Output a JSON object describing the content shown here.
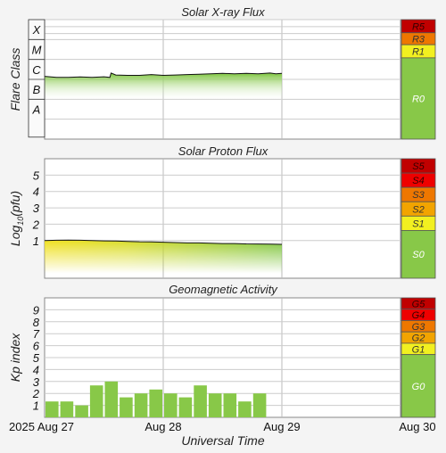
{
  "chart_data": [
    {
      "type": "area",
      "title": "Solar X-ray Flux",
      "ylabel": "Flare Class",
      "class_labels": [
        "X",
        "M",
        "C",
        "B",
        "A"
      ],
      "ylim": [
        -9,
        -3
      ],
      "x_start_day": 27,
      "x_end_day": 29,
      "series": [
        {
          "x": [
            27.0,
            27.1,
            27.2,
            27.3,
            27.4,
            27.5,
            27.55,
            27.56,
            27.6,
            27.7,
            27.8,
            27.9,
            28.0,
            28.1,
            28.2,
            28.3,
            28.4,
            28.5,
            28.6,
            28.7,
            28.8,
            28.9,
            28.95,
            29.0
          ],
          "values": [
            -5.85,
            -5.9,
            -5.9,
            -5.88,
            -5.9,
            -5.87,
            -5.9,
            -5.68,
            -5.78,
            -5.8,
            -5.8,
            -5.76,
            -5.8,
            -5.78,
            -5.76,
            -5.74,
            -5.72,
            -5.7,
            -5.72,
            -5.7,
            -5.72,
            -5.68,
            -5.72,
            -5.7
          ]
        }
      ],
      "scale": [
        {
          "label": "R5",
          "color": "#c00000"
        },
        {
          "label": "R3",
          "color": "#ee7700"
        },
        {
          "label": "R1",
          "color": "#f2f020"
        },
        {
          "label": "R0",
          "color": "#88c848"
        }
      ]
    },
    {
      "type": "area",
      "title": "Solar Proton Flux",
      "ylabel": "Log10(pfu)",
      "ytick_labels": [
        "1",
        "2",
        "3",
        "4",
        "5"
      ],
      "ylim": [
        -1.3,
        6
      ],
      "x_start_day": 27,
      "x_end_day": 29,
      "series": [
        {
          "x": [
            27.0,
            27.1,
            27.2,
            27.3,
            27.4,
            27.5,
            27.6,
            27.7,
            27.8,
            27.9,
            28.0,
            28.1,
            28.2,
            28.3,
            28.4,
            28.5,
            28.6,
            28.7,
            28.8,
            28.9,
            29.0
          ],
          "values": [
            1.0,
            1.02,
            1.03,
            1.02,
            1.0,
            0.98,
            0.97,
            0.95,
            0.93,
            0.92,
            0.9,
            0.88,
            0.86,
            0.86,
            0.84,
            0.82,
            0.82,
            0.8,
            0.79,
            0.78,
            0.77
          ]
        }
      ],
      "scale": [
        {
          "label": "S5",
          "color": "#c00000"
        },
        {
          "label": "S4",
          "color": "#ee0000"
        },
        {
          "label": "S3",
          "color": "#ee7700"
        },
        {
          "label": "S2",
          "color": "#f2a400"
        },
        {
          "label": "S1",
          "color": "#f2f020"
        },
        {
          "label": "S0",
          "color": "#88c848"
        }
      ]
    },
    {
      "type": "bar",
      "title": "Geomagnetic Activity",
      "ylabel": "Kp index",
      "yticks": [
        1,
        2,
        3,
        4,
        5,
        6,
        7,
        8,
        9
      ],
      "ylim": [
        0,
        10
      ],
      "x_start_day": 27,
      "bar_hours": 3,
      "values": [
        1.33,
        1.33,
        1.0,
        2.67,
        3.0,
        1.67,
        2.0,
        2.33,
        2.0,
        1.67,
        2.67,
        2.0,
        2.0,
        1.33,
        2.0
      ],
      "bar_color": "#88c848",
      "scale": [
        {
          "label": "G5",
          "color": "#c00000"
        },
        {
          "label": "G4",
          "color": "#ee0000"
        },
        {
          "label": "G3",
          "color": "#ee7700"
        },
        {
          "label": "G2",
          "color": "#f2a400"
        },
        {
          "label": "G1",
          "color": "#f2f020"
        },
        {
          "label": "G0",
          "color": "#88c848"
        }
      ]
    }
  ],
  "x_axis": {
    "label": "Universal Time",
    "ticks": [
      {
        "label": "2025 Aug 27",
        "day": 27
      },
      {
        "label": "Aug 28",
        "day": 28
      },
      {
        "label": "Aug 29",
        "day": 29
      },
      {
        "label": "Aug 30",
        "day": 30
      }
    ]
  }
}
